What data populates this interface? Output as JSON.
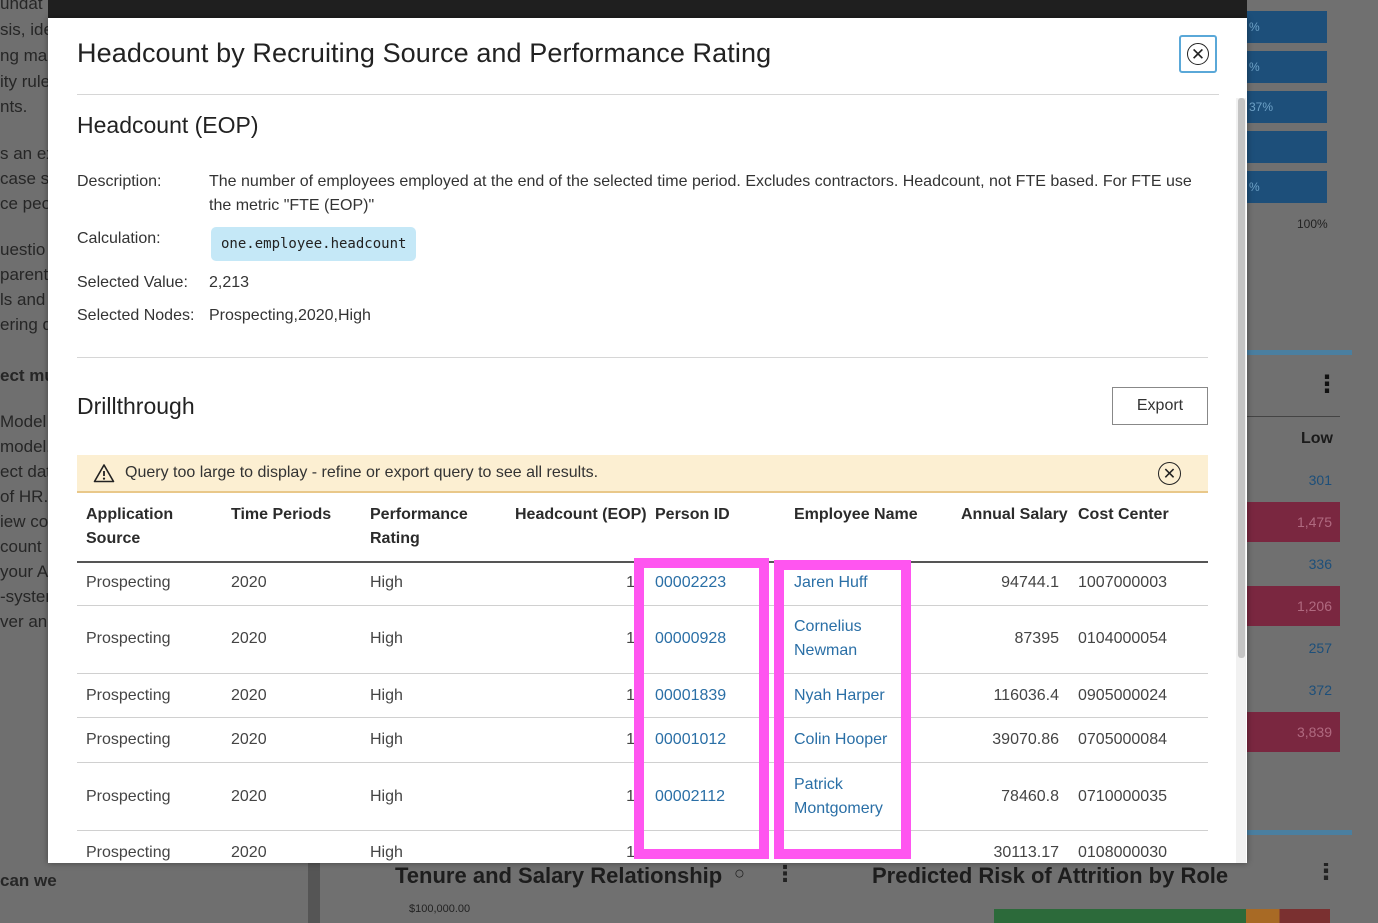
{
  "background": {
    "left_lines": [
      "undat",
      "sis, ide",
      "ng ma",
      "ity rule",
      "nts.",
      "s an ex",
      "case sc",
      "ce peo",
      "uestio",
      "parent",
      "ls and",
      "ering d",
      "ect mu",
      "Model i",
      "model.",
      "ect dat",
      "of HR.",
      "iew co",
      "count",
      "your A",
      "-system",
      "ver and"
    ],
    "bottom_left_text": "can we",
    "bottom_chart_titles": [
      "Tenure and Salary Relationship",
      "Predicted Risk of Attrition by Role"
    ],
    "bottom_axis_value": "$100,000.00",
    "right_bar_labels": [
      "%",
      "%",
      "37%",
      "",
      "%"
    ],
    "right_pct_label": "100%",
    "right_column_header": "Low",
    "right_values": [
      "301",
      "1,475",
      "336",
      "1,206",
      "257",
      "372",
      "3,839"
    ]
  },
  "modal": {
    "title": "Headcount by Recruiting Source and Performance Rating",
    "metric": {
      "heading": "Headcount (EOP)",
      "description_label": "Description:",
      "description": "The number of employees employed at the end of the selected time period. Excludes contractors. Headcount, not FTE based. For FTE use the metric \"FTE (EOP)\"",
      "calculation_label": "Calculation:",
      "calculation": "one.employee.headcount",
      "selected_value_label": "Selected Value:",
      "selected_value": "2,213",
      "selected_nodes_label": "Selected Nodes:",
      "selected_nodes": "Prospecting,2020,High"
    },
    "drillthrough": {
      "heading": "Drillthrough",
      "export_label": "Export",
      "warning": "Query too large to display - refine or export query to see all results.",
      "columns": [
        "Application Source",
        "Time Periods",
        "Performance Rating",
        "Headcount (EOP)",
        "Person ID",
        "Employee Name",
        "Annual Salary",
        "Cost Center"
      ],
      "rows": [
        {
          "source": "Prospecting",
          "period": "2020",
          "rating": "High",
          "headcount": "1",
          "person_id": "00002223",
          "name": "Jaren Huff",
          "salary": "94744.1",
          "cost_center": "1007000003"
        },
        {
          "source": "Prospecting",
          "period": "2020",
          "rating": "High",
          "headcount": "1",
          "person_id": "00000928",
          "name": "Cornelius Newman",
          "salary": "87395",
          "cost_center": "0104000054"
        },
        {
          "source": "Prospecting",
          "period": "2020",
          "rating": "High",
          "headcount": "1",
          "person_id": "00001839",
          "name": "Nyah Harper",
          "salary": "116036.4",
          "cost_center": "0905000024"
        },
        {
          "source": "Prospecting",
          "period": "2020",
          "rating": "High",
          "headcount": "1",
          "person_id": "00001012",
          "name": "Colin Hooper",
          "salary": "39070.86",
          "cost_center": "0705000084"
        },
        {
          "source": "Prospecting",
          "period": "2020",
          "rating": "High",
          "headcount": "1",
          "person_id": "00002112",
          "name": "Patrick Montgomery",
          "salary": "78460.8",
          "cost_center": "0710000035"
        },
        {
          "source": "Prospecting",
          "period": "2020",
          "rating": "High",
          "headcount": "1",
          "person_id": "",
          "name": "",
          "salary": "30113.17",
          "cost_center": "0108000030"
        }
      ]
    }
  },
  "colors": {
    "link": "#2a6fa6",
    "highlight": "#ff55f0",
    "warning_bg": "#fcefd2",
    "code_chip_bg": "#c5e8f7",
    "close_border": "#5aa8d8"
  }
}
